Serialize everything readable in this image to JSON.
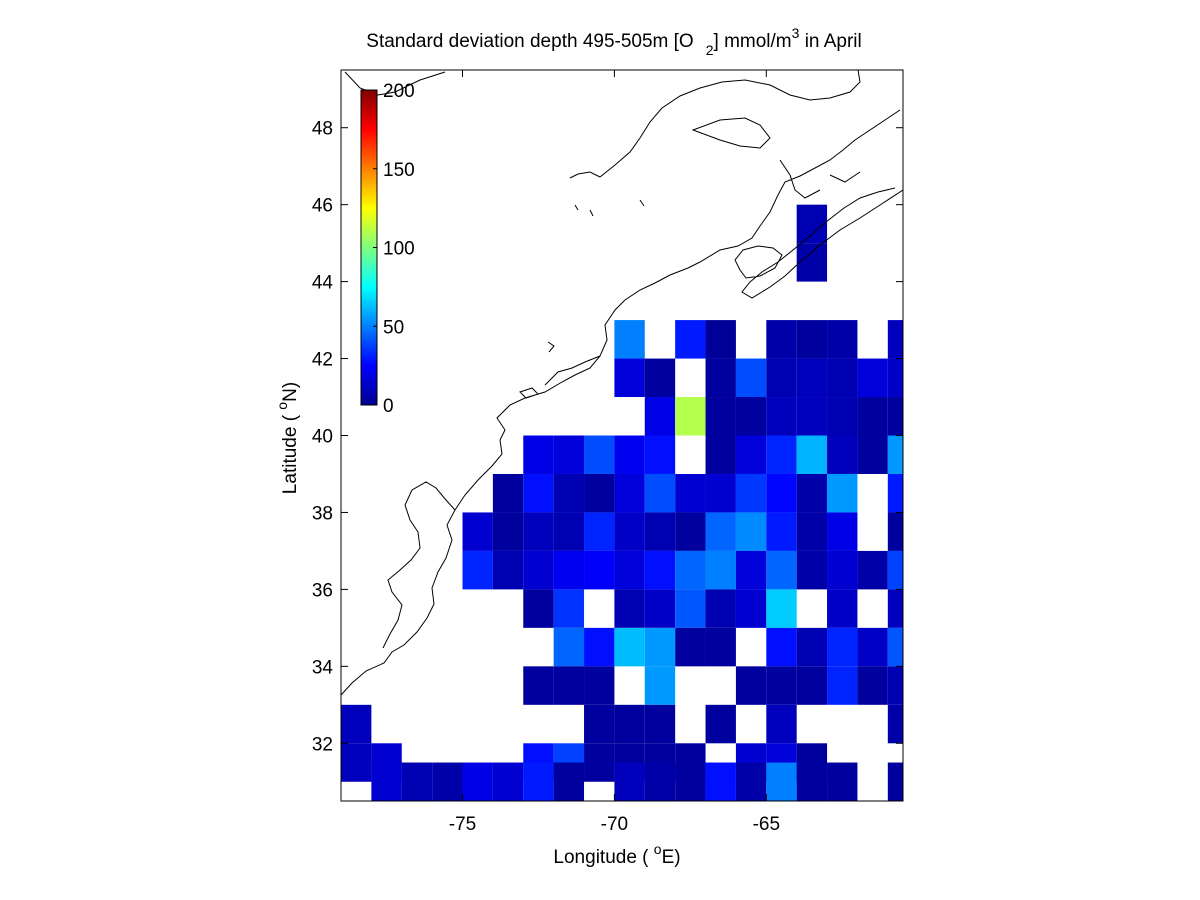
{
  "chart_data": {
    "type": "heatmap",
    "title": {
      "main": "Standard deviation depth 495-505m [O",
      "sub": "2",
      "mid": "] mmol/m",
      "sup": "3",
      "tail": " in April"
    },
    "xlabel": {
      "pre": "Longitude ( ",
      "sup": "o",
      "post": "E)"
    },
    "ylabel": {
      "pre": "Latitude ( ",
      "sup": "o",
      "post": "N)"
    },
    "xlim": [
      -79,
      -60.5
    ],
    "ylim": [
      30.5,
      49.5
    ],
    "x_ticks": [
      -75,
      -70,
      -65
    ],
    "x_tick_labels": [
      "-75",
      "-70",
      "-65"
    ],
    "y_ticks": [
      32,
      34,
      36,
      38,
      40,
      42,
      44,
      46,
      48
    ],
    "y_tick_labels": [
      "32",
      "34",
      "36",
      "38",
      "40",
      "42",
      "44",
      "46",
      "48"
    ],
    "colorbar": {
      "colormap": "jet",
      "range": [
        0,
        200
      ],
      "ticks": [
        0,
        50,
        100,
        150,
        200
      ],
      "tick_labels": [
        "0",
        "50",
        "100",
        "150",
        "200"
      ],
      "placement": "upper-left inside axes"
    },
    "grid": false,
    "cell_size_deg": 1,
    "cells": [
      [
        -64,
        44,
        8
      ],
      [
        -64,
        45,
        10
      ],
      [
        -70,
        42,
        50
      ],
      [
        -68,
        42,
        30
      ],
      [
        -67,
        42,
        5
      ],
      [
        -65,
        42,
        8
      ],
      [
        -64,
        42,
        6
      ],
      [
        -63,
        42,
        8
      ],
      [
        -61,
        42,
        12
      ],
      [
        -70,
        41,
        18
      ],
      [
        -69,
        41,
        6
      ],
      [
        -67,
        41,
        6
      ],
      [
        -66,
        41,
        40
      ],
      [
        -65,
        41,
        10
      ],
      [
        -64,
        41,
        12
      ],
      [
        -63,
        41,
        10
      ],
      [
        -62,
        41,
        18
      ],
      [
        -61,
        41,
        14
      ],
      [
        -69,
        40,
        20
      ],
      [
        -68,
        40,
        110
      ],
      [
        -67,
        40,
        6
      ],
      [
        -66,
        40,
        6
      ],
      [
        -65,
        40,
        12
      ],
      [
        -64,
        40,
        12
      ],
      [
        -63,
        40,
        10
      ],
      [
        -62,
        40,
        6
      ],
      [
        -61,
        40,
        6
      ],
      [
        -73,
        39,
        20
      ],
      [
        -72,
        39,
        18
      ],
      [
        -71,
        39,
        40
      ],
      [
        -70,
        39,
        22
      ],
      [
        -69,
        39,
        28
      ],
      [
        -67,
        39,
        6
      ],
      [
        -66,
        39,
        18
      ],
      [
        -65,
        39,
        32
      ],
      [
        -64,
        39,
        60
      ],
      [
        -63,
        39,
        12
      ],
      [
        -62,
        39,
        6
      ],
      [
        -61,
        39,
        55
      ],
      [
        -74,
        38,
        6
      ],
      [
        -73,
        38,
        28
      ],
      [
        -72,
        38,
        10
      ],
      [
        -71,
        38,
        6
      ],
      [
        -70,
        38,
        18
      ],
      [
        -69,
        38,
        40
      ],
      [
        -68,
        38,
        16
      ],
      [
        -67,
        38,
        16
      ],
      [
        -66,
        38,
        36
      ],
      [
        -65,
        38,
        26
      ],
      [
        -64,
        38,
        8
      ],
      [
        -63,
        38,
        55
      ],
      [
        -61,
        38,
        30
      ],
      [
        -75,
        37,
        16
      ],
      [
        -74,
        37,
        6
      ],
      [
        -73,
        37,
        12
      ],
      [
        -72,
        37,
        10
      ],
      [
        -71,
        37,
        32
      ],
      [
        -70,
        37,
        14
      ],
      [
        -69,
        37,
        10
      ],
      [
        -68,
        37,
        6
      ],
      [
        -67,
        37,
        45
      ],
      [
        -66,
        37,
        52
      ],
      [
        -65,
        37,
        30
      ],
      [
        -64,
        37,
        8
      ],
      [
        -63,
        37,
        20
      ],
      [
        -61,
        37,
        6
      ],
      [
        -75,
        36,
        32
      ],
      [
        -74,
        36,
        10
      ],
      [
        -73,
        36,
        16
      ],
      [
        -72,
        36,
        22
      ],
      [
        -71,
        36,
        24
      ],
      [
        -70,
        36,
        18
      ],
      [
        -69,
        36,
        28
      ],
      [
        -68,
        36,
        45
      ],
      [
        -67,
        36,
        50
      ],
      [
        -66,
        36,
        18
      ],
      [
        -65,
        36,
        45
      ],
      [
        -64,
        36,
        8
      ],
      [
        -63,
        36,
        16
      ],
      [
        -62,
        36,
        8
      ],
      [
        -61,
        36,
        38
      ],
      [
        -73,
        35,
        6
      ],
      [
        -72,
        35,
        35
      ],
      [
        -70,
        35,
        10
      ],
      [
        -69,
        35,
        14
      ],
      [
        -68,
        35,
        42
      ],
      [
        -67,
        35,
        10
      ],
      [
        -66,
        35,
        16
      ],
      [
        -65,
        35,
        65
      ],
      [
        -63,
        35,
        14
      ],
      [
        -61,
        35,
        12
      ],
      [
        -72,
        34,
        45
      ],
      [
        -71,
        34,
        28
      ],
      [
        -70,
        34,
        62
      ],
      [
        -69,
        34,
        55
      ],
      [
        -68,
        34,
        6
      ],
      [
        -67,
        34,
        6
      ],
      [
        -65,
        34,
        28
      ],
      [
        -64,
        34,
        10
      ],
      [
        -63,
        34,
        32
      ],
      [
        -62,
        34,
        14
      ],
      [
        -61,
        34,
        42
      ],
      [
        -73,
        33,
        6
      ],
      [
        -72,
        33,
        6
      ],
      [
        -71,
        33,
        6
      ],
      [
        -69,
        33,
        55
      ],
      [
        -66,
        33,
        6
      ],
      [
        -65,
        33,
        6
      ],
      [
        -64,
        33,
        6
      ],
      [
        -63,
        33,
        32
      ],
      [
        -62,
        33,
        6
      ],
      [
        -61,
        33,
        10
      ],
      [
        -79,
        32,
        12
      ],
      [
        -71,
        32,
        6
      ],
      [
        -70,
        32,
        6
      ],
      [
        -69,
        32,
        6
      ],
      [
        -67,
        32,
        6
      ],
      [
        -65,
        32,
        12
      ],
      [
        -61,
        32,
        8
      ],
      [
        -79,
        31,
        12
      ],
      [
        -78,
        31,
        16
      ],
      [
        -73,
        31,
        28
      ],
      [
        -72,
        31,
        38
      ],
      [
        -71,
        31,
        6
      ],
      [
        -70,
        31,
        6
      ],
      [
        -69,
        31,
        6
      ],
      [
        -68,
        31,
        6
      ],
      [
        -66,
        31,
        16
      ],
      [
        -65,
        31,
        18
      ],
      [
        -64,
        31,
        6
      ],
      [
        -78,
        30.5,
        16
      ],
      [
        -77,
        30.5,
        10
      ],
      [
        -76,
        30.5,
        8
      ],
      [
        -75,
        30.5,
        20
      ],
      [
        -74,
        30.5,
        16
      ],
      [
        -73,
        30.5,
        30
      ],
      [
        -72,
        30.5,
        6
      ],
      [
        -70,
        30.5,
        12
      ],
      [
        -69,
        30.5,
        8
      ],
      [
        -68,
        30.5,
        6
      ],
      [
        -67,
        30.5,
        28
      ],
      [
        -66,
        30.5,
        8
      ],
      [
        -65,
        30.5,
        50
      ],
      [
        -64,
        30.5,
        6
      ],
      [
        -63,
        30.5,
        6
      ],
      [
        -61,
        30.5,
        6
      ]
    ]
  }
}
